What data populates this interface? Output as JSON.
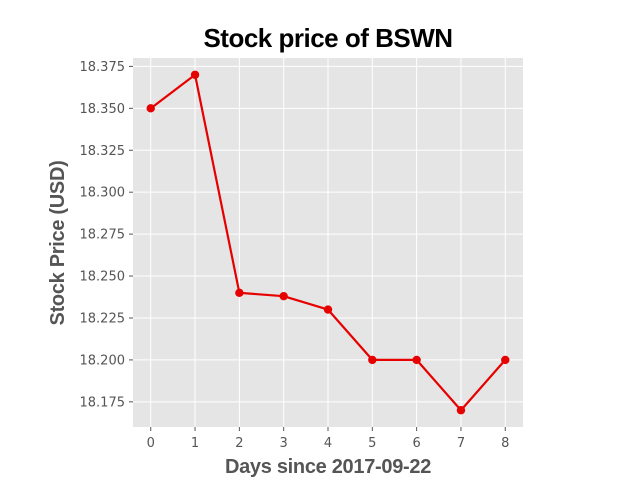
{
  "chart_data": {
    "type": "line",
    "title": "Stock price of BSWN",
    "xlabel": "Days since 2017-09-22",
    "ylabel": "Stock Price (USD)",
    "x": [
      0,
      1,
      2,
      3,
      4,
      5,
      6,
      7,
      8
    ],
    "series": [
      {
        "values": [
          18.35,
          18.37,
          18.24,
          18.238,
          18.23,
          18.2,
          18.2,
          18.17,
          18.2
        ],
        "color": "#e60000",
        "marker": "circle"
      }
    ],
    "xlim": [
      -0.4,
      8.4
    ],
    "ylim": [
      18.16,
      18.38
    ],
    "xticks": [
      0,
      1,
      2,
      3,
      4,
      5,
      6,
      7,
      8
    ],
    "xtick_labels": [
      "0",
      "1",
      "2",
      "3",
      "4",
      "5",
      "6",
      "7",
      "8"
    ],
    "yticks": [
      18.175,
      18.2,
      18.225,
      18.25,
      18.275,
      18.3,
      18.325,
      18.35,
      18.375
    ],
    "ytick_labels": [
      "18.175",
      "18.200",
      "18.225",
      "18.250",
      "18.275",
      "18.300",
      "18.325",
      "18.350",
      "18.375"
    ],
    "grid": true,
    "plot_background": "#e5e5e5",
    "grid_color": "#ffffff"
  }
}
